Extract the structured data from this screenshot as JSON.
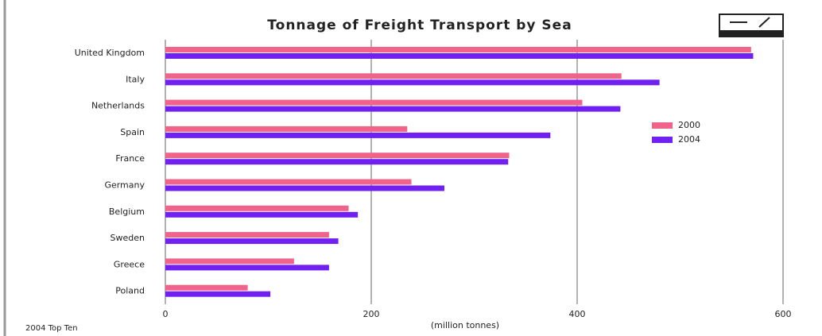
{
  "chart_data": {
    "type": "hbar",
    "title": "Tonnage of Freight Transport by Sea",
    "x_label": "(million tonnes)",
    "footnote": "2004 Top Ten",
    "categories": [
      "United Kingdom",
      "Italy",
      "Netherlands",
      "Spain",
      "France",
      "Germany",
      "Belgium",
      "Sweden",
      "Greece",
      "Poland"
    ],
    "series": [
      {
        "name": "2000",
        "color": "#f0648c",
        "values": [
          569,
          443,
          405,
          235,
          334,
          239,
          178,
          159,
          125,
          80
        ]
      },
      {
        "name": "2004",
        "color": "#7020f0",
        "values": [
          571,
          480,
          442,
          374,
          333,
          271,
          187,
          168,
          159,
          102
        ]
      }
    ],
    "xlim": [
      0,
      600
    ],
    "xticks": [
      0,
      200,
      400,
      600
    ],
    "grid": true
  }
}
